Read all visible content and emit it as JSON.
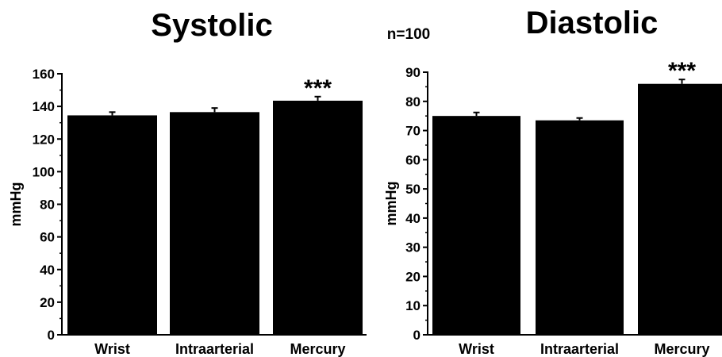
{
  "sample_label": "n=100",
  "colors": {
    "bar": "#000000",
    "axis": "#000000",
    "background": "#ffffff"
  },
  "chart_data": [
    {
      "type": "bar",
      "title": "Systolic",
      "ylabel": "mmHg",
      "xlabel": "",
      "categories": [
        "Wrist",
        "Intraarterial",
        "Mercury"
      ],
      "values": [
        134.5,
        136.5,
        143.5
      ],
      "errors": [
        2,
        2.5,
        2.5
      ],
      "annotations": [
        "",
        "",
        "***"
      ],
      "ylim": [
        0,
        160
      ],
      "yticks": [
        0,
        20,
        40,
        60,
        80,
        100,
        120,
        140,
        160
      ],
      "ytick_labels": [
        "0",
        "20",
        "40",
        "60",
        "80",
        "100",
        "120",
        "140",
        "160"
      ],
      "grid": false
    },
    {
      "type": "bar",
      "title": "Diastolic",
      "ylabel": "mmHg",
      "xlabel": "",
      "categories": [
        "Wrist",
        "Intraarterial",
        "Mercury"
      ],
      "values": [
        75,
        73.5,
        86
      ],
      "errors": [
        1.2,
        0.8,
        1.5
      ],
      "annotations": [
        "",
        "",
        "***"
      ],
      "ylim": [
        0,
        90
      ],
      "yticks": [
        0,
        10,
        20,
        30,
        40,
        50,
        60,
        70,
        80,
        90
      ],
      "ytick_labels": [
        "0",
        "10",
        "20",
        "30",
        "40",
        "50",
        "60",
        "70",
        "80",
        "90"
      ],
      "grid": false
    }
  ]
}
